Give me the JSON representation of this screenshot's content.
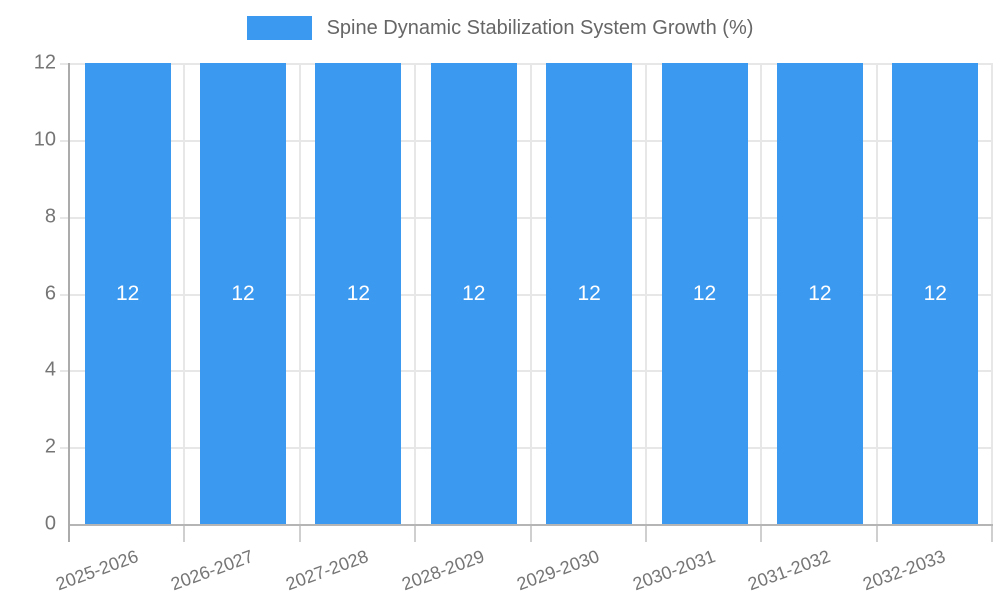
{
  "chart_data": {
    "type": "bar",
    "title": "Spine Dynamic Stabilization System Growth (%)",
    "categories": [
      "2025-2026",
      "2026-2027",
      "2027-2028",
      "2028-2029",
      "2029-2030",
      "2030-2031",
      "2031-2032",
      "2032-2033"
    ],
    "values": [
      12,
      12,
      12,
      12,
      12,
      12,
      12,
      12
    ],
    "xlabel": "",
    "ylabel": "",
    "ylim": [
      0,
      12
    ],
    "y_ticks": [
      "12",
      "10",
      "8",
      "6",
      "4",
      "2",
      "0"
    ],
    "grid": true,
    "legend_position": "top-center",
    "bar_label_position": "center"
  },
  "legend": {
    "label": "Spine Dynamic Stabilization System Growth (%)"
  },
  "colors": {
    "bar": "#3b99f0",
    "bar_label": "#ffffff",
    "grid": "#e7e7e7",
    "axis": "#b5b5b5",
    "tick_text": "#757575",
    "legend_text": "#666666",
    "background": "#ffffff"
  }
}
